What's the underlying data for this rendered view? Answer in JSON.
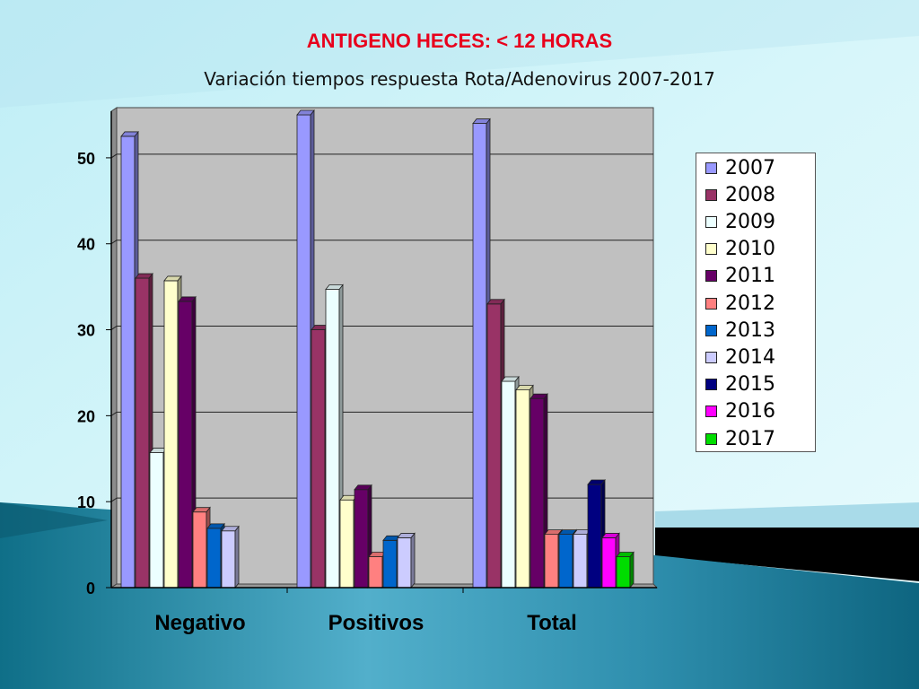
{
  "slide": {
    "title": "ANTIGENO HECES: < 12 HORAS"
  },
  "chart_data": {
    "type": "bar",
    "subtitle": "Variación tiempos respuesta Rota/Adenovirus 2007-2017",
    "categories": [
      "Negativo",
      "Positivos",
      "Total"
    ],
    "ylim": [
      0,
      55
    ],
    "yticks": [
      0,
      10,
      20,
      30,
      40,
      50
    ],
    "grid": true,
    "legend_position": "right",
    "series": [
      {
        "name": "2007",
        "color": "#9999ff",
        "values": [
          52.5,
          55,
          54
        ]
      },
      {
        "name": "2008",
        "color": "#993366",
        "values": [
          36,
          30,
          33
        ]
      },
      {
        "name": "2009",
        "color": "#ecffff",
        "values": [
          15.7,
          34.7,
          24
        ]
      },
      {
        "name": "2010",
        "color": "#ffffcc",
        "values": [
          35.7,
          10.2,
          23
        ]
      },
      {
        "name": "2011",
        "color": "#660066",
        "values": [
          33.3,
          11.4,
          22
        ]
      },
      {
        "name": "2012",
        "color": "#ff8080",
        "values": [
          8.8,
          3.6,
          6.2
        ]
      },
      {
        "name": "2013",
        "color": "#0066cc",
        "values": [
          6.9,
          5.5,
          6.2
        ]
      },
      {
        "name": "2014",
        "color": "#ccccff",
        "values": [
          6.6,
          5.8,
          6.2
        ]
      },
      {
        "name": "2015",
        "color": "#000080",
        "values": [
          null,
          null,
          12
        ]
      },
      {
        "name": "2016",
        "color": "#ff00ff",
        "values": [
          null,
          null,
          5.8
        ]
      },
      {
        "name": "2017",
        "color": "#00dd00",
        "values": [
          null,
          null,
          3.6
        ]
      }
    ]
  }
}
